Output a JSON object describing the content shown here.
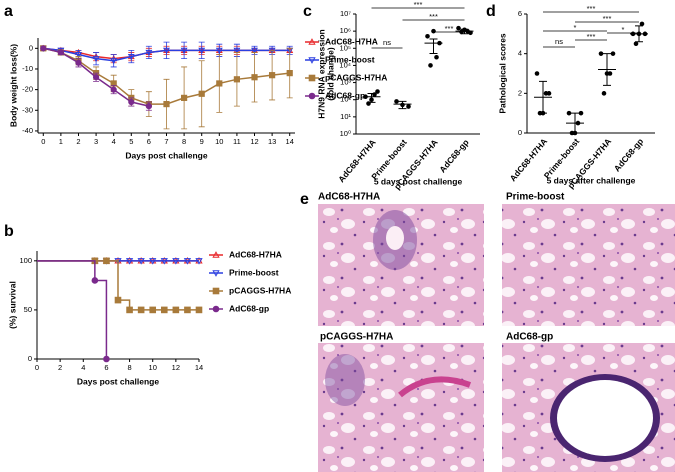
{
  "chart_data": [
    {
      "panel": "a",
      "type": "line",
      "xlabel": "Days post challenge",
      "ylabel": "Body weight loss(%)",
      "x": [
        0,
        1,
        2,
        3,
        4,
        5,
        6,
        7,
        8,
        9,
        10,
        11,
        12,
        13,
        14
      ],
      "xlim": [
        -0.3,
        14.3
      ],
      "xticks": [
        0,
        1,
        2,
        3,
        4,
        5,
        6,
        7,
        8,
        9,
        10,
        11,
        12,
        13,
        14
      ],
      "ylim": [
        -41,
        5
      ],
      "yticks": [
        0,
        -10,
        -20,
        -30,
        -40
      ],
      "legend": "right",
      "series": [
        {
          "name": "AdC68-H7HA",
          "color": "#e8282b",
          "marker": "triangle",
          "values": [
            0,
            -1,
            -2,
            -4,
            -5,
            -4,
            -2,
            -1,
            -1,
            -1,
            -1,
            -1,
            -1,
            -1,
            -1
          ],
          "errors": [
            0,
            1,
            1,
            2,
            2,
            2,
            2,
            2,
            2,
            2,
            2,
            2,
            1,
            1,
            1
          ]
        },
        {
          "name": "Prime-boost",
          "color": "#2b3fe0",
          "marker": "triangle-down",
          "values": [
            0,
            -1,
            -3,
            -5,
            -6,
            -4,
            -2,
            -1,
            -1,
            -1,
            -1,
            -1,
            -1,
            -1,
            -1
          ],
          "errors": [
            0,
            1,
            2,
            3,
            3,
            3,
            3,
            4,
            4,
            4,
            3,
            3,
            2,
            2,
            2
          ]
        },
        {
          "name": "pCAGGS-H7HA",
          "color": "#a87a3a",
          "marker": "square",
          "values": [
            0,
            -2,
            -6,
            -12,
            -17,
            -24,
            -27,
            -27,
            -24,
            -22,
            -17,
            -15,
            -14,
            -13,
            -12
          ],
          "errors": [
            0,
            1,
            2,
            3,
            4,
            4,
            6,
            12,
            15,
            16,
            14,
            13,
            12,
            12,
            12
          ]
        },
        {
          "name": "AdC68-gp",
          "color": "#7a2a8c",
          "marker": "circle",
          "values": [
            0,
            -2,
            -7,
            -14,
            -20,
            -26,
            -28,
            null,
            null,
            null,
            null,
            null,
            null,
            null,
            null
          ],
          "errors": [
            0,
            1,
            2,
            2,
            2,
            2,
            2,
            null,
            null,
            null,
            null,
            null,
            null,
            null,
            null
          ]
        }
      ]
    },
    {
      "panel": "b",
      "type": "step",
      "xlabel": "Days post challenge",
      "ylabel": "(%) survival",
      "x": [
        0,
        5,
        6,
        7,
        8,
        9,
        10,
        11,
        12,
        13,
        14
      ],
      "xlim": [
        0,
        14
      ],
      "xticks": [
        0,
        2,
        4,
        6,
        8,
        10,
        12,
        14
      ],
      "ylim": [
        0,
        110
      ],
      "yticks": [
        0,
        50,
        100
      ],
      "legend": "right",
      "series": [
        {
          "name": "AdC68-H7HA",
          "color": "#e8282b",
          "marker": "triangle",
          "values": [
            100,
            100,
            100,
            100,
            100,
            100,
            100,
            100,
            100,
            100,
            100
          ]
        },
        {
          "name": "Prime-boost",
          "color": "#2b3fe0",
          "marker": "triangle-down",
          "values": [
            100,
            100,
            100,
            100,
            100,
            100,
            100,
            100,
            100,
            100,
            100
          ]
        },
        {
          "name": "pCAGGS-H7HA",
          "color": "#a87a3a",
          "marker": "square",
          "values": [
            100,
            100,
            100,
            60,
            50,
            50,
            50,
            50,
            50,
            50,
            50
          ]
        },
        {
          "name": "AdC68-gp",
          "color": "#7a2a8c",
          "marker": "circle",
          "values": [
            100,
            80,
            0,
            null,
            null,
            null,
            null,
            null,
            null,
            null,
            null
          ]
        }
      ]
    },
    {
      "panel": "c",
      "type": "dot",
      "log_y": true,
      "xlabel": "5 days post challenge",
      "ylabel": [
        "H7N9 RNA expression",
        "(fold change)"
      ],
      "categories": [
        "AdC68-H7HA",
        "Prime-boost",
        "pCAGGS-H7HA",
        "AdC68-gp"
      ],
      "color": "#000000",
      "ylim": [
        1,
        10000000
      ],
      "yticks": [
        {
          "value": 1,
          "label": "10⁰"
        },
        {
          "value": 10,
          "label": "10¹"
        },
        {
          "value": 100,
          "label": "10²"
        },
        {
          "value": 1000,
          "label": "10³"
        },
        {
          "value": 10000,
          "label": "10⁴"
        },
        {
          "value": 100000,
          "label": "10⁵"
        },
        {
          "value": 1000000,
          "label": "10⁶"
        },
        {
          "value": 10000000,
          "label": "10⁷"
        }
      ],
      "points": [
        [
          150,
          300,
          100,
          60,
          200
        ],
        [
          80,
          40,
          50
        ],
        [
          500000,
          200000,
          1000000,
          10000,
          30000
        ],
        [
          1500000,
          800000,
          1200000,
          900000,
          1000000
        ]
      ],
      "mean": [
        150,
        55,
        200000,
        1000000
      ],
      "sd": [
        80,
        25,
        150000,
        300000
      ],
      "annotations": [
        {
          "text": "ns",
          "between": [
            "AdC68-H7HA",
            "Prime-boost"
          ]
        },
        {
          "text": "***",
          "between": [
            "pCAGGS-H7HA",
            "AdC68-gp"
          ]
        },
        {
          "text": "***",
          "between": [
            "Prime-boost",
            "AdC68-gp"
          ]
        },
        {
          "text": "***",
          "between": [
            "AdC68-H7HA",
            "AdC68-gp"
          ]
        }
      ]
    },
    {
      "panel": "d",
      "type": "dot",
      "xlabel": "5 days after challenge",
      "ylabel": "Pathological scores",
      "categories": [
        "AdC68-H7HA",
        "Prime-boost",
        "pCAGGS-H7HA",
        "AdC68-gp"
      ],
      "color": "#000000",
      "ylim": [
        0,
        6
      ],
      "yticks": [
        0,
        2,
        4,
        6
      ],
      "points": [
        [
          3,
          2,
          1,
          1,
          2
        ],
        [
          1,
          1,
          0,
          0,
          0.5
        ],
        [
          4,
          4,
          3,
          2,
          3
        ],
        [
          5,
          5,
          5,
          4.5,
          5.5
        ]
      ],
      "mean": [
        1.8,
        0.5,
        3.2,
        5
      ],
      "sd": [
        0.8,
        0.5,
        0.8,
        0.4
      ],
      "annotations": [
        {
          "text": "ns",
          "between": [
            "AdC68-H7HA",
            "Prime-boost"
          ]
        },
        {
          "text": "***",
          "between": [
            "Prime-boost",
            "pCAGGS-H7HA"
          ]
        },
        {
          "text": "*",
          "between": [
            "pCAGGS-H7HA",
            "AdC68-gp"
          ]
        },
        {
          "text": "*",
          "between": [
            "AdC68-H7HA",
            "pCAGGS-H7HA"
          ]
        },
        {
          "text": "***",
          "between": [
            "Prime-boost",
            "AdC68-gp"
          ]
        },
        {
          "text": "***",
          "between": [
            "AdC68-H7HA",
            "AdC68-gp"
          ]
        }
      ]
    }
  ],
  "histology": {
    "panel": "e",
    "images": [
      "AdC68-H7HA",
      "Prime-boost",
      "pCAGGS-H7HA",
      "AdC68-gp"
    ]
  }
}
